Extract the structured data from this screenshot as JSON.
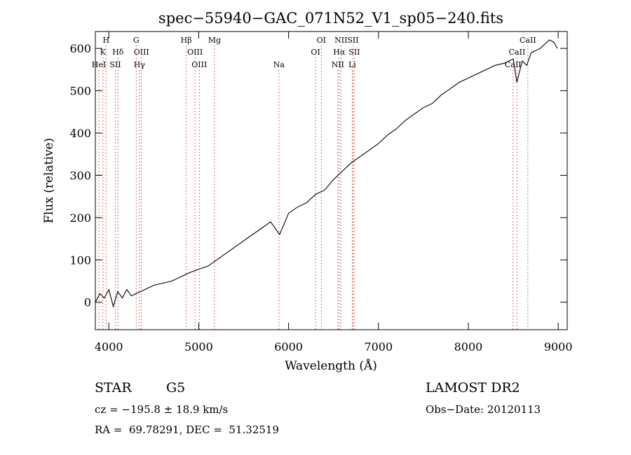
{
  "chart_data": {
    "type": "line",
    "title": "spec−55940−GAC_071N52_V1_sp05−240.fits",
    "xlabel": "Wavelength (Å)",
    "ylabel": "Flux (relative)",
    "xlim": [
      3850,
      9100
    ],
    "ylim": [
      -65,
      640
    ],
    "xticks": [
      4000,
      5000,
      6000,
      7000,
      8000,
      9000
    ],
    "yticks": [
      0,
      100,
      200,
      300,
      400,
      500,
      600
    ],
    "grid": false,
    "line_color": "#000000",
    "marker_color": "#d04040",
    "series": [
      {
        "x": [
          3850,
          3900,
          3950,
          4000,
          4050,
          4100,
          4150,
          4200,
          4250,
          4300,
          4350,
          4400,
          4450,
          4500,
          4600,
          4700,
          4800,
          4900,
          5000,
          5100,
          5200,
          5300,
          5400,
          5500,
          5600,
          5700,
          5800,
          5900,
          6000,
          6100,
          6200,
          6300,
          6400,
          6500,
          6600,
          6700,
          6800,
          6900,
          7000,
          7100,
          7200,
          7300,
          7400,
          7500,
          7600,
          7700,
          7800,
          7900,
          8000,
          8100,
          8200,
          8300,
          8400,
          8500,
          8540,
          8600,
          8650,
          8700,
          8800,
          8850,
          8900,
          8950,
          8990
        ],
        "y": [
          0,
          20,
          10,
          30,
          -10,
          25,
          10,
          30,
          15,
          20,
          25,
          30,
          35,
          40,
          45,
          50,
          60,
          70,
          78,
          85,
          100,
          115,
          130,
          145,
          160,
          175,
          190,
          160,
          210,
          225,
          235,
          255,
          265,
          290,
          310,
          330,
          345,
          360,
          375,
          395,
          410,
          430,
          445,
          460,
          470,
          490,
          505,
          520,
          530,
          540,
          550,
          560,
          565,
          575,
          520,
          570,
          560,
          590,
          600,
          610,
          620,
          615,
          600
        ]
      }
    ],
    "spectral_lines": [
      {
        "label": "H",
        "wavelength": 3969,
        "row": 0
      },
      {
        "label": "K",
        "wavelength": 3934,
        "row": 1
      },
      {
        "label": "Hδ",
        "wavelength": 4102,
        "row": 1
      },
      {
        "label": "HeI",
        "wavelength": 3889,
        "row": 2
      },
      {
        "label": "SII",
        "wavelength": 4072,
        "row": 2
      },
      {
        "label": "G",
        "wavelength": 4305,
        "row": 0
      },
      {
        "label": "OIII",
        "wavelength": 4363,
        "row": 1
      },
      {
        "label": "Hγ",
        "wavelength": 4340,
        "row": 2
      },
      {
        "label": "Hβ",
        "wavelength": 4861,
        "row": 0
      },
      {
        "label": "OIII",
        "wavelength": 4959,
        "row": 1
      },
      {
        "label": "OIII",
        "wavelength": 5007,
        "row": 2
      },
      {
        "label": "Mg",
        "wavelength": 5175,
        "row": 0
      },
      {
        "label": "Na",
        "wavelength": 5893,
        "row": 2
      },
      {
        "label": "OI",
        "wavelength": 6300,
        "row": 1
      },
      {
        "label": "OI",
        "wavelength": 6364,
        "row": 0
      },
      {
        "label": "NII",
        "wavelength": 6548,
        "row": 2
      },
      {
        "label": "NII",
        "wavelength": 6583,
        "row": 0
      },
      {
        "label": "Hα",
        "wavelength": 6563,
        "row": 1
      },
      {
        "label": "SII",
        "wavelength": 6717,
        "row": 0
      },
      {
        "label": "SII",
        "wavelength": 6731,
        "row": 1
      },
      {
        "label": "Li",
        "wavelength": 6708,
        "row": 2
      },
      {
        "label": "CaII",
        "wavelength": 8662,
        "row": 0
      },
      {
        "label": "CaII",
        "wavelength": 8542,
        "row": 1
      },
      {
        "label": "CaII",
        "wavelength": 8498,
        "row": 2
      }
    ]
  },
  "info": {
    "object_type": "STAR",
    "subclass": "G5",
    "survey": "LAMOST DR2",
    "cz": "cz = −195.8 ± 18.9 km/s",
    "obs_date": "Obs−Date: 20120113",
    "coords": "RA =  69.78291, DEC =  51.32519"
  }
}
